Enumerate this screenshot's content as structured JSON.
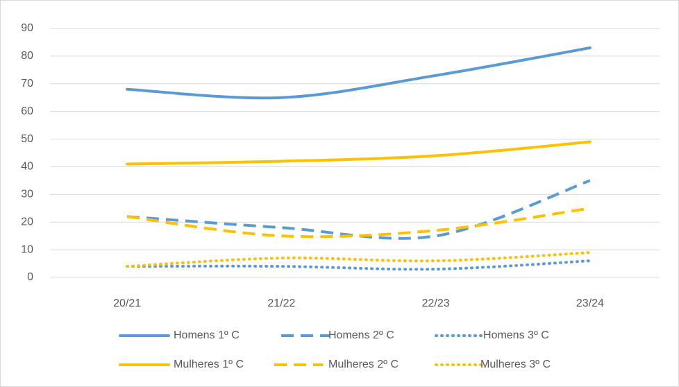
{
  "chart_data": {
    "type": "line",
    "categories": [
      "20/21",
      "21/22",
      "22/23",
      "23/24"
    ],
    "series": [
      {
        "name": "Homens 1º C",
        "color": "#5b9bd5",
        "dash": "solid",
        "values": [
          68,
          65,
          73,
          83
        ]
      },
      {
        "name": "Homens 2º C",
        "color": "#5b9bd5",
        "dash": "dash",
        "values": [
          22,
          18,
          15,
          35
        ]
      },
      {
        "name": "Homens 3º C",
        "color": "#5b9bd5",
        "dash": "dot",
        "values": [
          4,
          4,
          3,
          6
        ]
      },
      {
        "name": "Mulheres 1º C",
        "color": "#ffc000",
        "dash": "solid",
        "values": [
          41,
          42,
          44,
          49
        ]
      },
      {
        "name": "Mulheres 2º C",
        "color": "#ffc000",
        "dash": "dash",
        "values": [
          22,
          15,
          17,
          25
        ]
      },
      {
        "name": "Mulheres 3º C",
        "color": "#ffc000",
        "dash": "dot",
        "values": [
          4,
          7,
          6,
          9
        ]
      }
    ],
    "ylim": [
      0,
      90
    ],
    "yticks": [
      0,
      10,
      20,
      30,
      40,
      50,
      60,
      70,
      80,
      90
    ],
    "grid": true,
    "smooth": true,
    "legend": "bottom"
  }
}
